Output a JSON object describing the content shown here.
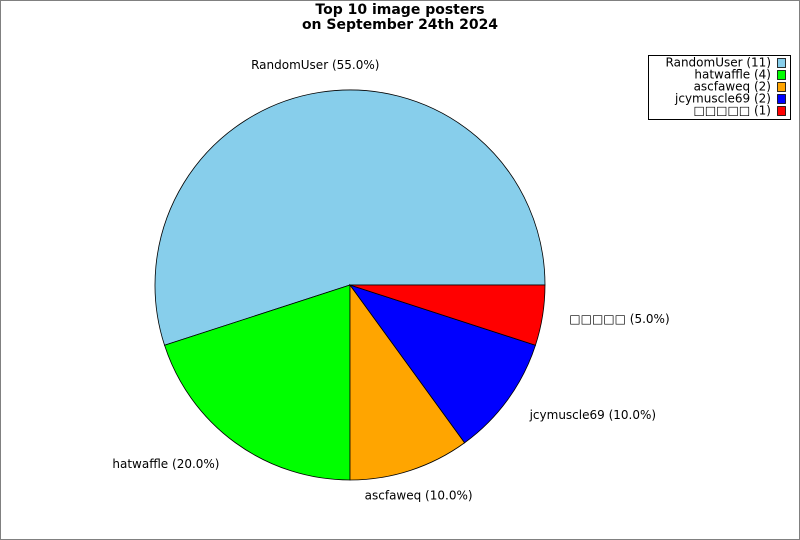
{
  "chart_data": {
    "type": "pie",
    "title": "Top 10 image posters",
    "subtitle": "on September 24th 2024",
    "categories": [
      "RandomUser",
      "hatwaffle",
      "ascfaweq",
      "jcymuscle69",
      "□□□□□"
    ],
    "values": [
      55.0,
      20.0,
      10.0,
      10.0,
      5.0
    ],
    "value_labels": [
      "RandomUser (55.0%)",
      "hatwaffle (20.0%)",
      "ascfaweq (10.0%)",
      "jcymuscle69 (10.0%)",
      "□□□□□ (5.0%)"
    ],
    "legend_labels": [
      "RandomUser (11)",
      "hatwaffle (4)",
      "ascfaweq (2)",
      "jcymuscle69 (2)",
      "□□□□□ (1)"
    ],
    "colors": [
      "#87ceeb",
      "#00ff00",
      "#ffa500",
      "#0000ff",
      "#ff0000"
    ],
    "legend": "upper right"
  }
}
